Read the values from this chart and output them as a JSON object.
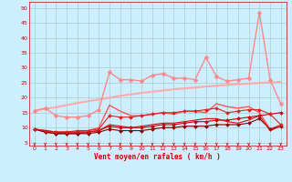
{
  "x": [
    0,
    1,
    2,
    3,
    4,
    5,
    6,
    7,
    8,
    9,
    10,
    11,
    12,
    13,
    14,
    15,
    16,
    17,
    18,
    19,
    20,
    21,
    22,
    23
  ],
  "bg_color": "#cceeff",
  "grid_color": "#aacccc",
  "xlabel": "Vent moyen/en rafales ( km/h )",
  "xlabel_color": "#cc0000",
  "tick_color": "#cc0000",
  "series": [
    {
      "name": "line1_light_diagonal",
      "color": "#ffaaaa",
      "linewidth": 1.5,
      "marker": null,
      "data": [
        15.6,
        16.3,
        16.8,
        17.5,
        18.2,
        18.8,
        19.4,
        20.0,
        20.6,
        21.1,
        21.6,
        22.0,
        22.4,
        22.8,
        23.1,
        23.4,
        23.7,
        24.0,
        24.3,
        24.5,
        24.7,
        24.9,
        25.1,
        25.3
      ]
    },
    {
      "name": "line2_pink_markers",
      "color": "#ff8888",
      "linewidth": 1.0,
      "marker": "D",
      "markersize": 2.5,
      "data": [
        15.6,
        16.5,
        14.0,
        13.5,
        13.5,
        14.0,
        16.0,
        28.5,
        26.0,
        26.0,
        25.5,
        27.5,
        28.0,
        26.5,
        26.5,
        26.0,
        33.5,
        27.0,
        25.5,
        26.0,
        26.5,
        48.5,
        26.0,
        18.0
      ]
    },
    {
      "name": "line3_medium_red",
      "color": "#ff5555",
      "linewidth": 1.0,
      "marker": null,
      "data": [
        9.5,
        9.0,
        8.5,
        8.5,
        8.5,
        9.0,
        10.0,
        17.5,
        15.5,
        14.0,
        14.0,
        14.5,
        15.0,
        14.5,
        15.5,
        15.5,
        15.0,
        18.0,
        17.0,
        16.5,
        17.0,
        15.0,
        9.5,
        11.0
      ]
    },
    {
      "name": "line4_dark_red_flat",
      "color": "#cc0000",
      "linewidth": 0.8,
      "marker": "D",
      "markersize": 2.0,
      "data": [
        9.5,
        8.5,
        8.0,
        8.0,
        8.0,
        8.5,
        9.0,
        10.5,
        10.0,
        10.0,
        10.0,
        10.5,
        11.0,
        11.0,
        11.5,
        12.0,
        12.0,
        12.5,
        12.5,
        13.0,
        13.5,
        14.0,
        14.5,
        15.0
      ]
    },
    {
      "name": "line5_dark_bottom",
      "color": "#880000",
      "linewidth": 0.8,
      "marker": "D",
      "markersize": 2.0,
      "data": [
        9.5,
        8.5,
        8.0,
        8.0,
        8.0,
        8.0,
        8.5,
        9.5,
        9.0,
        9.0,
        9.0,
        9.5,
        10.0,
        10.0,
        10.5,
        10.5,
        10.5,
        11.0,
        11.0,
        11.0,
        11.5,
        13.0,
        9.5,
        10.5
      ]
    },
    {
      "name": "line6_red_markers",
      "color": "#dd2222",
      "linewidth": 0.8,
      "marker": "D",
      "markersize": 2.0,
      "data": [
        9.5,
        9.0,
        8.5,
        8.5,
        9.0,
        9.0,
        9.5,
        14.0,
        13.5,
        13.5,
        14.0,
        14.5,
        15.0,
        15.0,
        15.5,
        15.5,
        16.0,
        16.5,
        15.0,
        15.5,
        16.0,
        16.0,
        14.5,
        11.0
      ]
    },
    {
      "name": "line7_dashed_red",
      "color": "#cc1111",
      "linewidth": 0.8,
      "marker": null,
      "data": [
        9.5,
        9.0,
        8.5,
        8.5,
        8.5,
        8.5,
        9.0,
        11.0,
        10.5,
        10.0,
        10.5,
        11.0,
        11.5,
        11.5,
        12.0,
        12.5,
        13.0,
        13.0,
        12.0,
        11.5,
        12.5,
        14.0,
        9.0,
        10.5
      ]
    }
  ],
  "yticks": [
    5,
    10,
    15,
    20,
    25,
    30,
    35,
    40,
    45,
    50
  ],
  "xticks": [
    0,
    1,
    2,
    3,
    4,
    5,
    6,
    7,
    8,
    9,
    10,
    11,
    12,
    13,
    14,
    15,
    16,
    17,
    18,
    19,
    20,
    21,
    22,
    23
  ],
  "ylim": [
    4,
    52
  ],
  "xlim": [
    -0.5,
    23.5
  ],
  "arrow_color": "#cc0000"
}
